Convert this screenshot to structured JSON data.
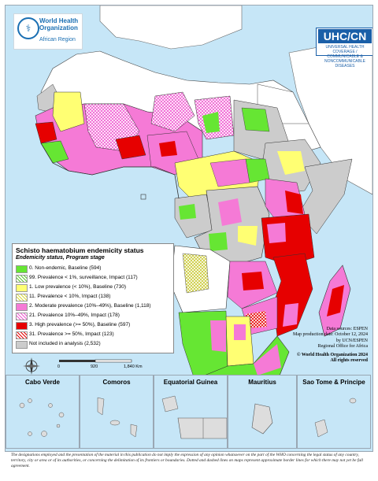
{
  "header": {
    "org_name": "World Health Organization",
    "org_region": "African Region",
    "partner_logo": "UHC/CN",
    "partner_sub": "UNIVERSAL HEALTH COVERAGE / COMMUNICABLE & NONCOMMUNICABLE DISEASES"
  },
  "legend": {
    "title": "Schisto haematobium endemicity status",
    "subtitle": "Endemicity status, Program stage",
    "items": [
      {
        "label": "0. Non-endemic, Baseline (594)",
        "color": "#66e633",
        "pattern": "solid"
      },
      {
        "label": "99. Prevalence < 1%, surveillance, Impact (117)",
        "color": "#5cc431",
        "pattern": "hatch"
      },
      {
        "label": "1. Low prevalence (< 10%), Baseline (730)",
        "color": "#ffff73",
        "pattern": "solid"
      },
      {
        "label": "11. Prevalence < 10%, Impact (138)",
        "color": "#e8e84a",
        "pattern": "hatch"
      },
      {
        "label": "2. Moderate prevalence (10%–49%), Baseline (1,118)",
        "color": "#f57ad6",
        "pattern": "solid"
      },
      {
        "label": "21. Prevalence 10%–49%, Impact (178)",
        "color": "#f057d0",
        "pattern": "hatch"
      },
      {
        "label": "3. High prevalence (>= 50%), Baseline (597)",
        "color": "#e60000",
        "pattern": "solid"
      },
      {
        "label": "31. Prevalence >= 50%, Impact (123)",
        "color": "#e60000",
        "pattern": "hatch"
      },
      {
        "label": "Not included in analysis (2,532)",
        "color": "#cccccc",
        "pattern": "solid"
      }
    ]
  },
  "credits": {
    "line1": "Data sources: ESPEN",
    "line2": "Map production date: October 12, 2024",
    "line3": "by UCN/ESPEN",
    "line4": "Regional Office for Africa",
    "copyright": "© World Health Organization 2024",
    "rights": "All rights reserved"
  },
  "scale": {
    "t0": "0",
    "t1": "920",
    "t2": "1,840 Km"
  },
  "insets": [
    {
      "name": "Cabo Verde"
    },
    {
      "name": "Comoros"
    },
    {
      "name": "Equatorial Guinea"
    },
    {
      "name": "Mauritius"
    },
    {
      "name": "Sao Tome & Principe"
    }
  ],
  "disclaimer": "The designations employed and the presentation of the material in this publication do not imply the expression of any opinion whatsoever on the part of the WHO concerning the legal status of any country, territory, city or area or of its authorities, or concerning the delimitation of its frontiers or boundaries. Dotted and dashed lines on maps represent approximate border lines for which there may not yet be full agreement.",
  "colors": {
    "water": "#c6e6f7",
    "non_africa": "#ffffff",
    "not_included": "#cccccc",
    "border": "#333333"
  }
}
